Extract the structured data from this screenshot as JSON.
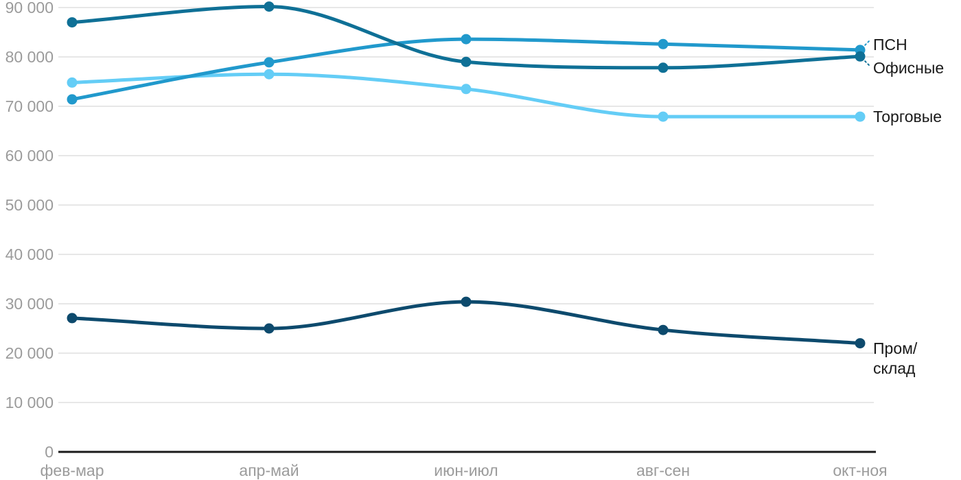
{
  "chart_data": {
    "type": "line",
    "title": "",
    "categories": [
      "фев-мар",
      "апр-май",
      "июн-июл",
      "авг-сен",
      "окт-ноя"
    ],
    "series": [
      {
        "name": "Торговые",
        "label_lines": [
          "Торговые"
        ],
        "color": "#64cdf6",
        "values": [
          74800,
          76500,
          73500,
          67900,
          67900
        ]
      },
      {
        "name": "ПСН",
        "label_lines": [
          "ПСН"
        ],
        "color": "#2199cc",
        "values": [
          71400,
          78900,
          83600,
          82600,
          81400
        ]
      },
      {
        "name": "Офисные",
        "label_lines": [
          "Офисные"
        ],
        "color": "#0f7096",
        "values": [
          87000,
          90200,
          79000,
          77800,
          80100
        ]
      },
      {
        "name": "Пром/склад",
        "label_lines": [
          "Пром/",
          "склад"
        ],
        "color": "#0d4a6d",
        "values": [
          27100,
          25000,
          30400,
          24700,
          22000
        ]
      }
    ],
    "y_axis": {
      "min": 0,
      "max": 90000,
      "step": 10000,
      "tick_labels": [
        "0",
        "10 000",
        "20 000",
        "30 000",
        "40 000",
        "50 000",
        "60 000",
        "70 000",
        "80 000",
        "90 000"
      ]
    },
    "x_axis": {
      "tick_labels": [
        "фев-мар",
        "апр-май",
        "июн-июл",
        "авг-сен",
        "окт-ноя"
      ]
    },
    "grid": "horizontal",
    "legend_position": "right-end-labels",
    "colors": {
      "background": "#ffffff",
      "grid": "#e7e7e7",
      "axis_line": "#1a1a1a",
      "tick_label": "#9b9b9b",
      "series_label": "#1a1a1a"
    }
  }
}
